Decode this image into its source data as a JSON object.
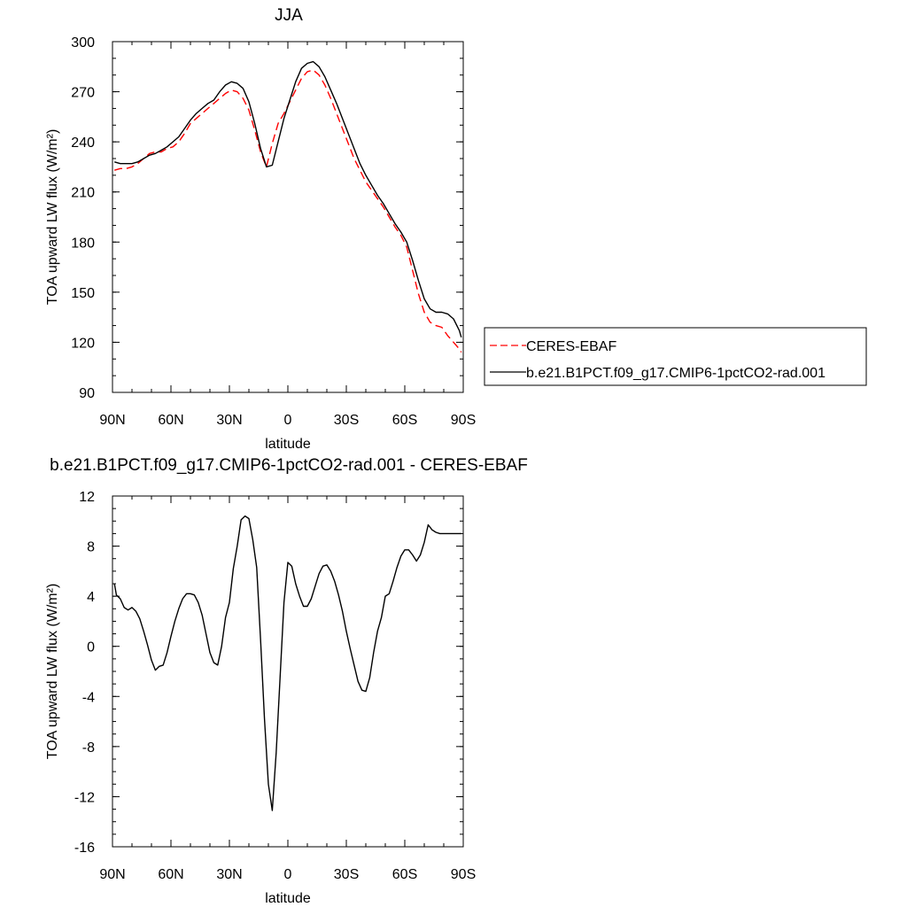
{
  "chart_data": [
    {
      "type": "line",
      "title": "JJA",
      "xlabel": "latitude",
      "ylabel": "TOA upward LW flux (W/m²)",
      "xlim": [
        90,
        -90
      ],
      "ylim": [
        90,
        300
      ],
      "xticks": [
        {
          "value": 90,
          "label": "90N"
        },
        {
          "value": 60,
          "label": "60N"
        },
        {
          "value": 30,
          "label": "30N"
        },
        {
          "value": 0,
          "label": "0"
        },
        {
          "value": -30,
          "label": "30S"
        },
        {
          "value": -60,
          "label": "60S"
        },
        {
          "value": -90,
          "label": "90S"
        }
      ],
      "yticks": [
        {
          "value": 300,
          "label": "300"
        },
        {
          "value": 270,
          "label": "270"
        },
        {
          "value": 240,
          "label": "240"
        },
        {
          "value": 210,
          "label": "210"
        },
        {
          "value": 180,
          "label": "180"
        },
        {
          "value": 150,
          "label": "150"
        },
        {
          "value": 120,
          "label": "120"
        },
        {
          "value": 90,
          "label": "90"
        }
      ],
      "legend": {
        "placement": "right",
        "entries": [
          {
            "name": "CERES-EBAF",
            "color": "#ff0000",
            "dash": "dashed"
          },
          {
            "name": "b.e21.B1PCT.f09_g17.CMIP6-1pctCO2-rad.001",
            "color": "#000000",
            "dash": "solid"
          }
        ]
      },
      "series": [
        {
          "name": "CERES-EBAF",
          "color": "#ff0000",
          "dash": "dashed",
          "x": [
            89,
            86,
            83,
            80,
            77,
            74,
            71,
            68,
            65,
            62,
            59,
            56,
            53,
            50,
            47,
            44,
            41,
            38,
            35,
            32,
            29,
            26,
            23,
            20,
            17,
            14,
            11,
            8,
            5,
            2,
            -1,
            -4,
            -7,
            -10,
            -13,
            -16,
            -19,
            -22,
            -25,
            -28,
            -31,
            -34,
            -37,
            -40,
            -43,
            -46,
            -49,
            -52,
            -55,
            -58,
            -61,
            -64,
            -67,
            -70,
            -73,
            -76,
            -79,
            -82,
            -85,
            -88,
            -89
          ],
          "y": [
            223,
            224,
            224,
            225,
            227,
            230,
            233,
            234,
            234,
            236,
            237,
            240,
            245,
            251,
            254,
            257,
            260,
            263,
            266,
            269,
            271,
            270,
            266,
            259,
            247,
            234,
            225,
            239,
            251,
            257,
            264,
            271,
            278,
            282,
            283,
            280,
            274,
            266,
            257,
            248,
            239,
            230,
            223,
            216,
            211,
            206,
            201,
            195,
            189,
            184,
            177,
            163,
            149,
            138,
            132,
            130,
            129,
            124,
            120,
            116,
            114
          ]
        },
        {
          "name": "b.e21.B1PCT.f09_g17.CMIP6-1pctCO2-rad.001",
          "color": "#000000",
          "dash": "solid",
          "x": [
            89,
            86,
            83,
            80,
            77,
            74,
            71,
            68,
            65,
            62,
            59,
            56,
            53,
            50,
            47,
            44,
            41,
            38,
            35,
            32,
            29,
            26,
            23,
            20,
            17,
            14,
            11,
            8,
            5,
            2,
            -1,
            -4,
            -7,
            -10,
            -13,
            -16,
            -19,
            -22,
            -25,
            -28,
            -31,
            -34,
            -37,
            -40,
            -43,
            -46,
            -49,
            -52,
            -55,
            -58,
            -61,
            -64,
            -67,
            -70,
            -73,
            -76,
            -79,
            -82,
            -85,
            -88,
            -89
          ],
          "y": [
            228,
            227,
            227,
            227,
            228,
            230,
            232,
            233,
            235,
            237,
            240,
            243,
            248,
            253,
            257,
            260,
            263,
            265,
            270,
            274,
            276,
            275,
            272,
            264,
            251,
            236,
            225,
            226,
            240,
            254,
            265,
            276,
            284,
            287,
            288,
            285,
            279,
            271,
            263,
            254,
            245,
            236,
            227,
            220,
            214,
            208,
            203,
            197,
            191,
            186,
            180,
            169,
            157,
            146,
            140,
            138,
            138,
            137,
            134,
            127,
            123
          ]
        }
      ]
    },
    {
      "type": "line",
      "title": "b.e21.B1PCT.f09_g17.CMIP6-1pctCO2-rad.001 - CERES-EBAF",
      "xlabel": "latitude",
      "ylabel": "TOA upward LW flux (W/m²)",
      "xlim": [
        90,
        -90
      ],
      "ylim": [
        -16,
        12
      ],
      "xticks": [
        {
          "value": 90,
          "label": "90N"
        },
        {
          "value": 60,
          "label": "60N"
        },
        {
          "value": 30,
          "label": "30N"
        },
        {
          "value": 0,
          "label": "0"
        },
        {
          "value": -30,
          "label": "30S"
        },
        {
          "value": -60,
          "label": "60S"
        },
        {
          "value": -90,
          "label": "90S"
        }
      ],
      "yticks": [
        {
          "value": 12,
          "label": "12"
        },
        {
          "value": 8,
          "label": "8"
        },
        {
          "value": 4,
          "label": "4"
        },
        {
          "value": 0,
          "label": "0"
        },
        {
          "value": -4,
          "label": "-4"
        },
        {
          "value": -8,
          "label": "-8"
        },
        {
          "value": -12,
          "label": "-12"
        },
        {
          "value": -16,
          "label": "-16"
        }
      ],
      "series": [
        {
          "name": "",
          "color": "#000000",
          "dash": "solid",
          "x": [
            89,
            88,
            86,
            84,
            82,
            80,
            78,
            76,
            74,
            72,
            70,
            68,
            66,
            64,
            62,
            60,
            58,
            56,
            54,
            52,
            50,
            48,
            46,
            44,
            42,
            40,
            38,
            36,
            34,
            32,
            30,
            28,
            26,
            24,
            22,
            20,
            18,
            16,
            14,
            12,
            10,
            8,
            6,
            4,
            2,
            0,
            -2,
            -4,
            -6,
            -8,
            -10,
            -12,
            -14,
            -16,
            -18,
            -20,
            -22,
            -24,
            -26,
            -28,
            -30,
            -32,
            -34,
            -36,
            -38,
            -40,
            -42,
            -44,
            -46,
            -48,
            -50,
            -52,
            -54,
            -56,
            -58,
            -60,
            -62,
            -64,
            -66,
            -68,
            -70,
            -72,
            -74,
            -76,
            -78,
            -80,
            -82,
            -84,
            -86,
            -88,
            -89
          ],
          "y": [
            5,
            4.1,
            3.8,
            3.1,
            2.9,
            3.1,
            2.8,
            2.2,
            1.2,
            0.1,
            -1.1,
            -1.9,
            -1.6,
            -1.5,
            -0.5,
            0.8,
            2,
            3,
            3.8,
            4.2,
            4.2,
            4.1,
            3.5,
            2.5,
            1,
            -0.5,
            -1.3,
            -1.5,
            0,
            2.3,
            3.5,
            6.2,
            8,
            10.1,
            10.4,
            10.2,
            8.5,
            6.3,
            0.5,
            -5.8,
            -11,
            -13.1,
            -8.5,
            -2.5,
            3.5,
            6.7,
            6.4,
            5,
            4,
            3.2,
            3.2,
            3.8,
            4.8,
            5.8,
            6.4,
            6.5,
            6,
            5.2,
            4.1,
            2.8,
            1.2,
            -0.2,
            -1.5,
            -2.8,
            -3.5,
            -3.6,
            -2.5,
            -0.5,
            1.2,
            2.3,
            4,
            4.2,
            5.2,
            6.3,
            7.2,
            7.7,
            7.7,
            7.3,
            6.8,
            7.3,
            8.3,
            9.7,
            9.3,
            9.1,
            9,
            9,
            9,
            9,
            9,
            9,
            9
          ]
        }
      ]
    }
  ]
}
